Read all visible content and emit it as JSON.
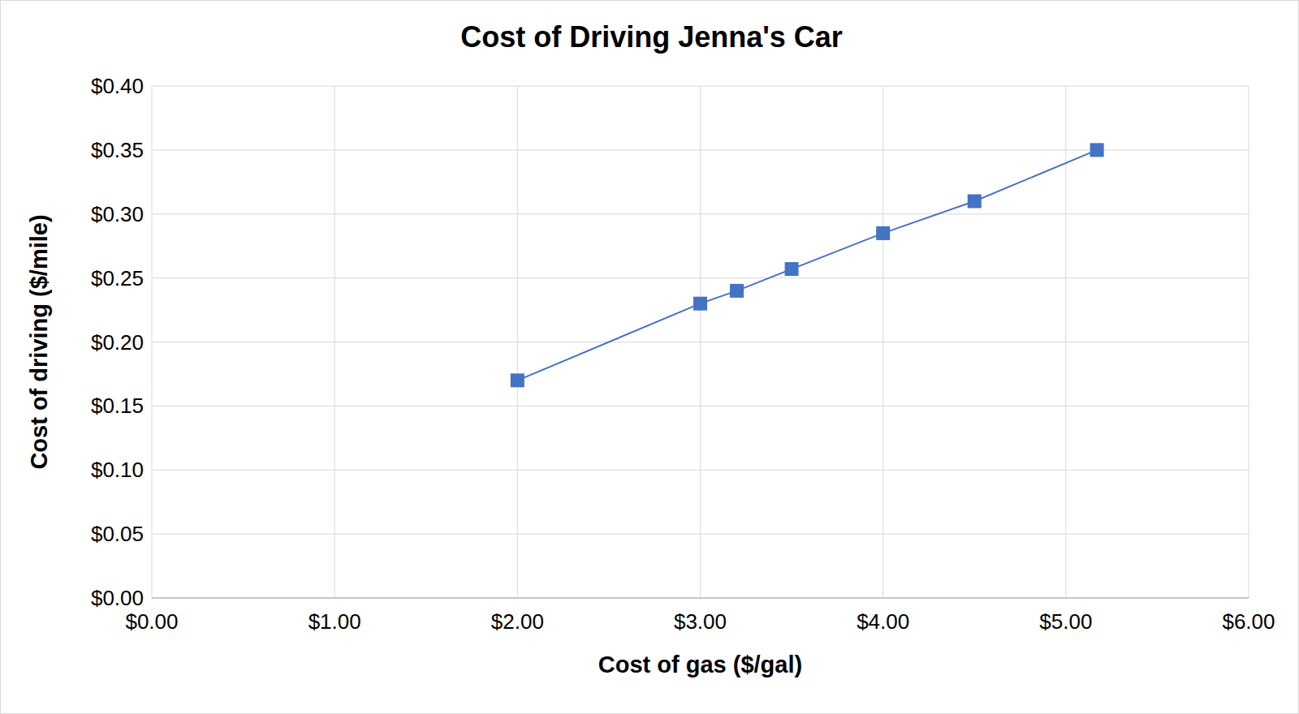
{
  "chart_data": {
    "type": "line",
    "title": "Cost of Driving Jenna's Car",
    "x_label": "Cost of gas ($/gal)",
    "y_label": "Cost of driving ($/mile)",
    "x": [
      2.0,
      3.0,
      3.2,
      3.5,
      4.0,
      4.5,
      5.17
    ],
    "values": [
      0.17,
      0.23,
      0.24,
      0.257,
      0.285,
      0.31,
      0.35
    ],
    "color": "#4472c4",
    "marker": "square",
    "line_style": "solid",
    "xlim": [
      0,
      6
    ],
    "xticks": [
      {
        "value": 0,
        "label": "$0.00"
      },
      {
        "value": 1,
        "label": "$1.00"
      },
      {
        "value": 2,
        "label": "$2.00"
      },
      {
        "value": 3,
        "label": "$3.00"
      },
      {
        "value": 4,
        "label": "$4.00"
      },
      {
        "value": 5,
        "label": "$5.00"
      },
      {
        "value": 6,
        "label": "$6.00"
      }
    ],
    "ylim": [
      0,
      0.4
    ],
    "yticks": [
      {
        "value": 0,
        "label": "$0.00"
      },
      {
        "value": 0.05,
        "label": "$0.05"
      },
      {
        "value": 0.1,
        "label": "$0.10"
      },
      {
        "value": 0.15,
        "label": "$0.15"
      },
      {
        "value": 0.2,
        "label": "$0.20"
      },
      {
        "value": 0.25,
        "label": "$0.25"
      },
      {
        "value": 0.3,
        "label": "$0.30"
      },
      {
        "value": 0.35,
        "label": "$0.35"
      },
      {
        "value": 0.4,
        "label": "$0.40"
      }
    ],
    "grid": true
  }
}
